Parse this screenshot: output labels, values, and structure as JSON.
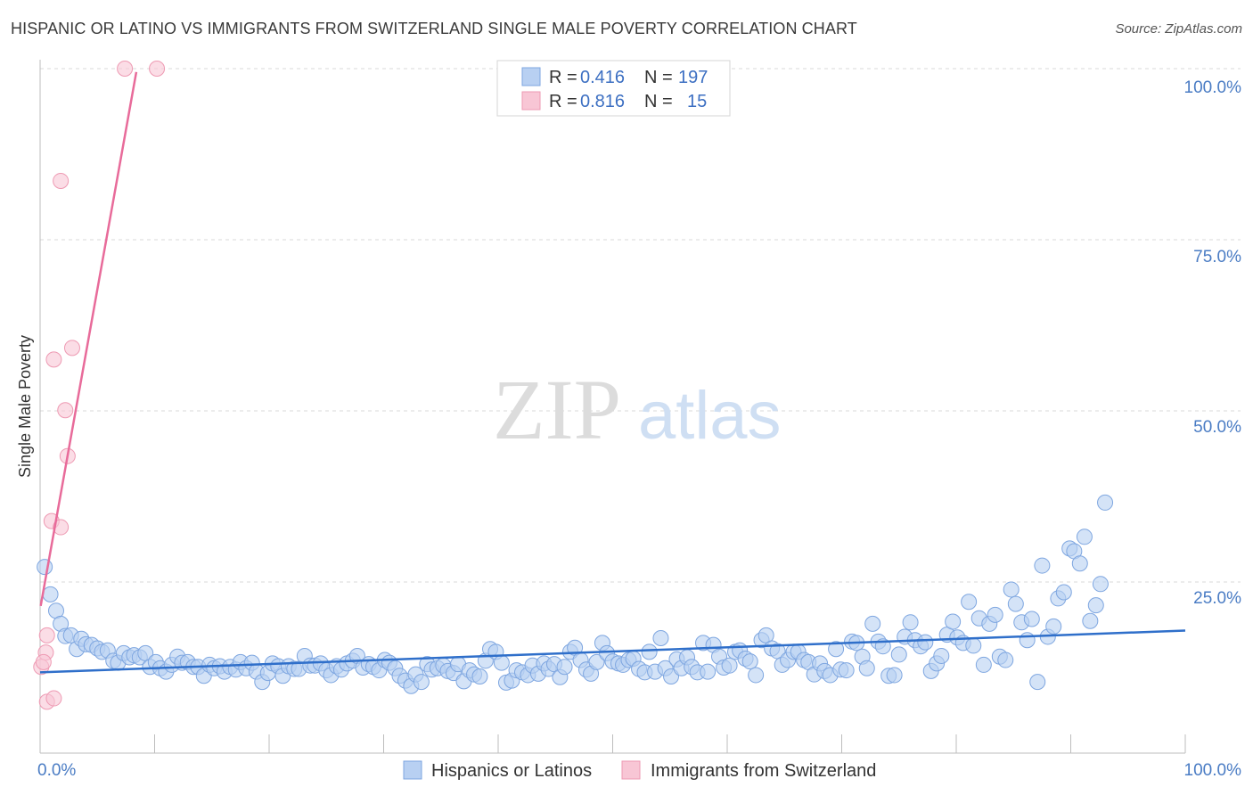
{
  "header": {
    "title": "HISPANIC OR LATINO VS IMMIGRANTS FROM SWITZERLAND SINGLE MALE POVERTY CORRELATION CHART",
    "source": "Source: ZipAtlas.com"
  },
  "watermark": {
    "zip": "ZIP",
    "atlas": "atlas"
  },
  "colors": {
    "blue_fill": "#b8d0f2",
    "blue_stroke": "#7ea6e0",
    "blue_line": "#2f6fca",
    "pink_fill": "#f8c6d5",
    "pink_stroke": "#ee9ab3",
    "pink_line": "#e86b9a",
    "grid": "#d9d9d9",
    "tick_label": "#4a7cc4"
  },
  "legend": {
    "rows": [
      {
        "r_label": "R = ",
        "r_value": "0.416",
        "n_label": "N = ",
        "n_value": "197"
      },
      {
        "r_label": "R = ",
        "r_value": "0.816",
        "n_label": "N = ",
        "n_value": "15"
      }
    ]
  },
  "bottom_legend": {
    "items": [
      {
        "label": "Hispanics or Latinos"
      },
      {
        "label": "Immigrants from Switzerland"
      }
    ]
  },
  "chart_data": {
    "type": "scatter",
    "title": "HISPANIC OR LATINO VS IMMIGRANTS FROM SWITZERLAND SINGLE MALE POVERTY CORRELATION CHART",
    "xlabel": "",
    "ylabel": "Single Male Poverty",
    "xlim": [
      0,
      100
    ],
    "ylim": [
      0,
      100
    ],
    "x_tick_labels": [
      "0.0%",
      "100.0%"
    ],
    "y_ticks": [
      25,
      50,
      75,
      100
    ],
    "y_tick_labels": [
      "25.0%",
      "50.0%",
      "75.0%",
      "100.0%"
    ],
    "grid": true,
    "series": [
      {
        "name": "Hispanics or Latinos",
        "r": 0.416,
        "n": 197,
        "trend": {
          "x": [
            0,
            100
          ],
          "y": [
            11.8,
            17.9
          ]
        },
        "points": [
          [
            0.4,
            27.2
          ],
          [
            0.9,
            23.2
          ],
          [
            1.4,
            20.8
          ],
          [
            1.8,
            18.9
          ],
          [
            2.2,
            17.1
          ],
          [
            2.7,
            17.2
          ],
          [
            3.2,
            15.2
          ],
          [
            3.6,
            16.7
          ],
          [
            4.0,
            15.9
          ],
          [
            4.5,
            15.8
          ],
          [
            5.0,
            15.3
          ],
          [
            5.4,
            14.8
          ],
          [
            5.9,
            15.0
          ],
          [
            6.4,
            13.5
          ],
          [
            6.8,
            13.2
          ],
          [
            7.3,
            14.6
          ],
          [
            7.8,
            14.0
          ],
          [
            8.2,
            14.3
          ],
          [
            8.7,
            14.0
          ],
          [
            9.2,
            14.6
          ],
          [
            9.6,
            12.6
          ],
          [
            10.1,
            13.3
          ],
          [
            10.5,
            12.4
          ],
          [
            11.0,
            11.9
          ],
          [
            11.5,
            12.9
          ],
          [
            12.0,
            14.1
          ],
          [
            12.4,
            13.2
          ],
          [
            12.9,
            13.3
          ],
          [
            13.4,
            12.6
          ],
          [
            13.8,
            12.6
          ],
          [
            14.3,
            11.3
          ],
          [
            14.8,
            12.9
          ],
          [
            15.2,
            12.4
          ],
          [
            15.7,
            12.7
          ],
          [
            16.1,
            11.9
          ],
          [
            16.6,
            12.6
          ],
          [
            17.1,
            12.2
          ],
          [
            17.5,
            13.3
          ],
          [
            18.0,
            12.4
          ],
          [
            18.5,
            13.2
          ],
          [
            18.9,
            11.9
          ],
          [
            19.4,
            10.4
          ],
          [
            19.9,
            11.7
          ],
          [
            20.3,
            13.1
          ],
          [
            20.8,
            12.7
          ],
          [
            21.2,
            11.3
          ],
          [
            21.7,
            12.7
          ],
          [
            22.2,
            12.3
          ],
          [
            22.6,
            12.3
          ],
          [
            23.1,
            14.2
          ],
          [
            23.6,
            12.8
          ],
          [
            24.0,
            12.8
          ],
          [
            24.5,
            13.1
          ],
          [
            25.0,
            12.1
          ],
          [
            25.4,
            11.4
          ],
          [
            25.9,
            12.7
          ],
          [
            26.3,
            12.2
          ],
          [
            26.8,
            13.1
          ],
          [
            27.3,
            13.5
          ],
          [
            27.7,
            14.2
          ],
          [
            28.2,
            12.5
          ],
          [
            28.7,
            13.0
          ],
          [
            29.1,
            12.6
          ],
          [
            29.6,
            12.1
          ],
          [
            30.1,
            13.6
          ],
          [
            30.5,
            13.2
          ],
          [
            31.0,
            12.4
          ],
          [
            31.4,
            11.3
          ],
          [
            31.9,
            10.6
          ],
          [
            32.4,
            9.8
          ],
          [
            32.8,
            11.5
          ],
          [
            33.3,
            10.4
          ],
          [
            33.8,
            13.0
          ],
          [
            34.2,
            12.2
          ],
          [
            34.7,
            12.4
          ],
          [
            35.2,
            12.8
          ],
          [
            35.6,
            12.0
          ],
          [
            36.1,
            11.7
          ],
          [
            36.5,
            13.0
          ],
          [
            37.0,
            10.5
          ],
          [
            37.5,
            12.1
          ],
          [
            37.9,
            11.5
          ],
          [
            38.4,
            11.2
          ],
          [
            38.9,
            13.5
          ],
          [
            39.3,
            15.2
          ],
          [
            39.8,
            14.8
          ],
          [
            40.3,
            13.2
          ],
          [
            40.7,
            10.3
          ],
          [
            41.2,
            10.6
          ],
          [
            41.6,
            12.1
          ],
          [
            42.1,
            11.8
          ],
          [
            42.6,
            11.4
          ],
          [
            43.0,
            12.8
          ],
          [
            43.5,
            11.6
          ],
          [
            44.0,
            13.1
          ],
          [
            44.4,
            12.3
          ],
          [
            44.9,
            13.0
          ],
          [
            45.4,
            11.1
          ],
          [
            45.8,
            12.6
          ],
          [
            46.3,
            14.8
          ],
          [
            46.7,
            15.4
          ],
          [
            47.2,
            13.6
          ],
          [
            47.7,
            12.2
          ],
          [
            48.1,
            11.6
          ],
          [
            48.6,
            13.3
          ],
          [
            49.1,
            16.1
          ],
          [
            49.5,
            14.6
          ],
          [
            50.0,
            13.4
          ],
          [
            50.5,
            13.1
          ],
          [
            50.9,
            12.9
          ],
          [
            51.4,
            13.6
          ],
          [
            51.8,
            13.8
          ],
          [
            52.3,
            12.3
          ],
          [
            52.8,
            11.8
          ],
          [
            53.2,
            14.8
          ],
          [
            53.7,
            11.9
          ],
          [
            54.2,
            16.8
          ],
          [
            54.6,
            12.4
          ],
          [
            55.1,
            11.2
          ],
          [
            55.6,
            13.7
          ],
          [
            56.0,
            12.4
          ],
          [
            56.5,
            14.0
          ],
          [
            56.9,
            12.6
          ],
          [
            57.4,
            11.8
          ],
          [
            57.9,
            16.1
          ],
          [
            58.3,
            11.9
          ],
          [
            58.8,
            15.8
          ],
          [
            59.3,
            14.1
          ],
          [
            59.7,
            12.5
          ],
          [
            60.2,
            12.8
          ],
          [
            60.7,
            14.8
          ],
          [
            61.1,
            15.0
          ],
          [
            61.6,
            13.8
          ],
          [
            62.0,
            13.4
          ],
          [
            62.5,
            11.4
          ],
          [
            63.0,
            16.5
          ],
          [
            63.4,
            17.2
          ],
          [
            63.9,
            15.3
          ],
          [
            64.4,
            14.9
          ],
          [
            64.8,
            12.9
          ],
          [
            65.3,
            13.6
          ],
          [
            65.8,
            14.8
          ],
          [
            66.2,
            14.8
          ],
          [
            66.7,
            13.6
          ],
          [
            67.1,
            13.3
          ],
          [
            67.6,
            11.5
          ],
          [
            68.1,
            13.1
          ],
          [
            68.5,
            12.0
          ],
          [
            69.0,
            11.4
          ],
          [
            69.5,
            15.2
          ],
          [
            69.9,
            12.2
          ],
          [
            70.4,
            12.1
          ],
          [
            70.9,
            16.3
          ],
          [
            71.3,
            16.1
          ],
          [
            71.8,
            14.1
          ],
          [
            72.2,
            12.4
          ],
          [
            72.7,
            18.9
          ],
          [
            73.2,
            16.3
          ],
          [
            73.6,
            15.6
          ],
          [
            74.1,
            11.3
          ],
          [
            74.6,
            11.4
          ],
          [
            75.0,
            14.4
          ],
          [
            75.5,
            17.0
          ],
          [
            76.0,
            19.1
          ],
          [
            76.4,
            16.5
          ],
          [
            76.9,
            15.6
          ],
          [
            77.3,
            16.2
          ],
          [
            77.8,
            12.0
          ],
          [
            78.3,
            13.1
          ],
          [
            78.7,
            14.2
          ],
          [
            79.2,
            17.3
          ],
          [
            79.7,
            19.2
          ],
          [
            80.1,
            16.9
          ],
          [
            80.6,
            16.1
          ],
          [
            81.1,
            22.1
          ],
          [
            81.5,
            15.7
          ],
          [
            82.0,
            19.7
          ],
          [
            82.4,
            12.9
          ],
          [
            82.9,
            18.9
          ],
          [
            83.4,
            20.2
          ],
          [
            83.8,
            14.1
          ],
          [
            84.3,
            13.6
          ],
          [
            84.8,
            23.9
          ],
          [
            85.2,
            21.8
          ],
          [
            85.7,
            19.1
          ],
          [
            86.2,
            16.5
          ],
          [
            86.6,
            19.6
          ],
          [
            87.1,
            10.4
          ],
          [
            87.5,
            27.4
          ],
          [
            88.0,
            17.0
          ],
          [
            88.5,
            18.5
          ],
          [
            88.9,
            22.6
          ],
          [
            89.4,
            23.5
          ],
          [
            89.9,
            29.9
          ],
          [
            90.3,
            29.5
          ],
          [
            90.8,
            27.7
          ],
          [
            91.2,
            31.6
          ],
          [
            91.7,
            19.3
          ],
          [
            92.2,
            21.6
          ],
          [
            92.6,
            24.7
          ],
          [
            93.0,
            36.6
          ]
        ]
      },
      {
        "name": "Immigrants from Switzerland",
        "r": 0.816,
        "n": 15,
        "trend": {
          "x": [
            0.05,
            8.4
          ],
          "y": [
            21.5,
            99.5
          ]
        },
        "points": [
          [
            7.4,
            100.0
          ],
          [
            10.2,
            100.0
          ],
          [
            1.8,
            83.6
          ],
          [
            2.8,
            59.2
          ],
          [
            1.2,
            57.5
          ],
          [
            2.2,
            50.1
          ],
          [
            2.4,
            43.4
          ],
          [
            1.0,
            33.9
          ],
          [
            1.8,
            33.0
          ],
          [
            0.6,
            17.2
          ],
          [
            0.5,
            14.7
          ],
          [
            0.1,
            12.6
          ],
          [
            0.6,
            7.5
          ],
          [
            1.2,
            8.0
          ],
          [
            0.3,
            13.3
          ]
        ]
      }
    ]
  }
}
